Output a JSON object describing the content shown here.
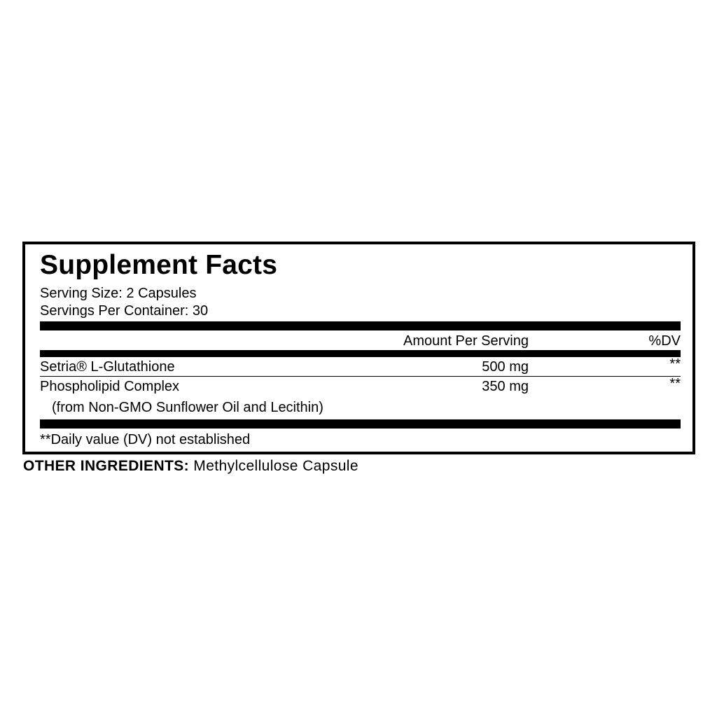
{
  "label": {
    "title": "Supplement Facts",
    "serving_size": "Serving Size: 2 Capsules",
    "servings_per_container": "Servings Per Container: 30",
    "columns": {
      "amount": "Amount Per Serving",
      "dv": "%DV"
    },
    "rows": [
      {
        "name": "Setria® L-Glutathione",
        "amount": "500 mg",
        "dv": "**"
      },
      {
        "name": "Phospholipid Complex",
        "sub": "(from Non-GMO Sunflower Oil and Lecithin)",
        "amount": "350 mg",
        "dv": "**"
      }
    ],
    "footnote": "**Daily value (DV) not established"
  },
  "other_ingredients": {
    "heading": "OTHER INGREDIENTS:",
    "value": "Methylcellulose Capsule"
  }
}
